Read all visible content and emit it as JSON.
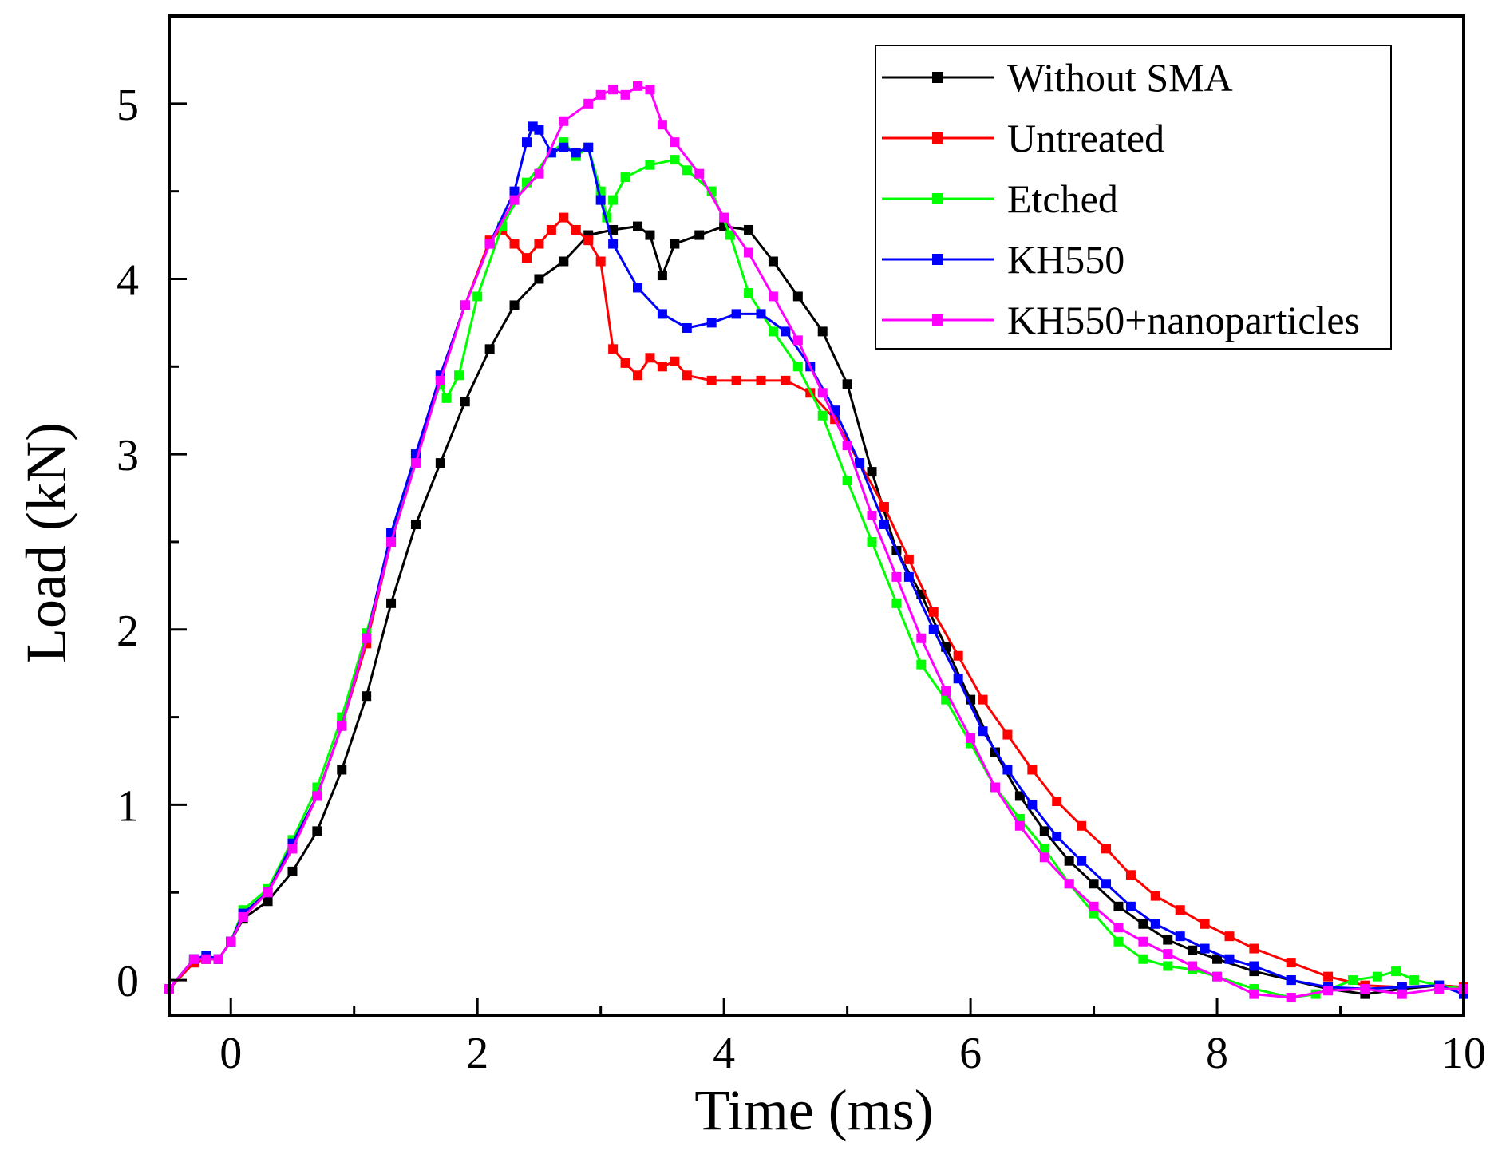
{
  "chart_data": {
    "type": "line",
    "title": "",
    "xlabel": "Time (ms)",
    "ylabel": "Load (kN)",
    "xlim": [
      -0.5,
      10
    ],
    "ylim": [
      -0.2,
      5.5
    ],
    "xticks": [
      0,
      2,
      4,
      6,
      8,
      10
    ],
    "xtick_labels": [
      "0",
      "2",
      "4",
      "6",
      "8",
      "10"
    ],
    "yticks": [
      0,
      1,
      2,
      3,
      4,
      5
    ],
    "ytick_labels": [
      "0",
      "1",
      "2",
      "3",
      "4",
      "5"
    ],
    "grid": false,
    "legend_position": "top-right",
    "series": [
      {
        "name": "Without SMA",
        "color": "#000000",
        "x": [
          -0.5,
          -0.3,
          -0.2,
          -0.1,
          0,
          0.1,
          0.3,
          0.5,
          0.7,
          0.9,
          1.1,
          1.3,
          1.5,
          1.7,
          1.9,
          2.1,
          2.3,
          2.5,
          2.7,
          2.9,
          3.1,
          3.3,
          3.4,
          3.5,
          3.6,
          3.8,
          4.0,
          4.2,
          4.4,
          4.6,
          4.8,
          5.0,
          5.2,
          5.4,
          5.6,
          5.8,
          6.0,
          6.2,
          6.4,
          6.6,
          6.8,
          7.0,
          7.2,
          7.4,
          7.6,
          7.8,
          8.0,
          8.3,
          8.6,
          8.9,
          9.2,
          9.5,
          9.8,
          10
        ],
        "y": [
          -0.05,
          0.1,
          0.12,
          0.12,
          0.22,
          0.35,
          0.45,
          0.62,
          0.85,
          1.2,
          1.62,
          2.15,
          2.6,
          2.95,
          3.3,
          3.6,
          3.85,
          4.0,
          4.1,
          4.25,
          4.28,
          4.3,
          4.25,
          4.02,
          4.2,
          4.25,
          4.3,
          4.28,
          4.1,
          3.9,
          3.7,
          3.4,
          2.9,
          2.45,
          2.2,
          1.9,
          1.6,
          1.3,
          1.05,
          0.85,
          0.68,
          0.55,
          0.42,
          0.32,
          0.23,
          0.17,
          0.12,
          0.05,
          0.0,
          -0.05,
          -0.08,
          -0.05,
          -0.03,
          -0.04
        ]
      },
      {
        "name": "Untreated",
        "color": "#ff0000",
        "x": [
          -0.5,
          -0.3,
          -0.2,
          -0.1,
          0,
          0.1,
          0.3,
          0.5,
          0.7,
          0.9,
          1.1,
          1.3,
          1.5,
          1.7,
          1.9,
          2.1,
          2.2,
          2.3,
          2.4,
          2.5,
          2.6,
          2.7,
          2.8,
          2.9,
          3.0,
          3.1,
          3.2,
          3.3,
          3.4,
          3.5,
          3.6,
          3.7,
          3.9,
          4.1,
          4.3,
          4.5,
          4.7,
          4.9,
          5.1,
          5.3,
          5.5,
          5.7,
          5.9,
          6.1,
          6.3,
          6.5,
          6.7,
          6.9,
          7.1,
          7.3,
          7.5,
          7.7,
          7.9,
          8.1,
          8.3,
          8.6,
          8.9,
          9.2,
          9.5,
          9.8,
          10
        ],
        "y": [
          -0.05,
          0.1,
          0.12,
          0.12,
          0.22,
          0.38,
          0.5,
          0.75,
          1.05,
          1.45,
          1.92,
          2.5,
          3.0,
          3.45,
          3.85,
          4.22,
          4.28,
          4.2,
          4.12,
          4.2,
          4.28,
          4.35,
          4.28,
          4.22,
          4.1,
          3.6,
          3.52,
          3.45,
          3.55,
          3.5,
          3.53,
          3.45,
          3.42,
          3.42,
          3.42,
          3.42,
          3.35,
          3.2,
          2.95,
          2.7,
          2.4,
          2.1,
          1.85,
          1.6,
          1.4,
          1.2,
          1.02,
          0.88,
          0.75,
          0.6,
          0.48,
          0.4,
          0.32,
          0.25,
          0.18,
          0.1,
          0.02,
          -0.03,
          -0.04,
          -0.03,
          -0.04
        ]
      },
      {
        "name": "Etched",
        "color": "#00ff00",
        "x": [
          -0.5,
          -0.3,
          -0.2,
          -0.1,
          0,
          0.1,
          0.3,
          0.5,
          0.7,
          0.9,
          1.1,
          1.3,
          1.5,
          1.7,
          1.75,
          1.85,
          2.0,
          2.2,
          2.4,
          2.6,
          2.7,
          2.8,
          2.9,
          3.0,
          3.05,
          3.1,
          3.2,
          3.4,
          3.6,
          3.7,
          3.9,
          4.05,
          4.2,
          4.4,
          4.6,
          4.8,
          5.0,
          5.2,
          5.4,
          5.6,
          5.8,
          6.0,
          6.2,
          6.4,
          6.6,
          6.8,
          7.0,
          7.2,
          7.4,
          7.6,
          7.8,
          8.0,
          8.3,
          8.6,
          8.8,
          9.1,
          9.3,
          9.45,
          9.6,
          9.8,
          10
        ],
        "y": [
          -0.05,
          0.12,
          0.14,
          0.12,
          0.22,
          0.4,
          0.52,
          0.8,
          1.1,
          1.5,
          1.98,
          2.5,
          3.0,
          3.4,
          3.32,
          3.45,
          3.9,
          4.3,
          4.55,
          4.72,
          4.78,
          4.7,
          4.75,
          4.5,
          4.35,
          4.45,
          4.58,
          4.65,
          4.68,
          4.62,
          4.5,
          4.25,
          3.92,
          3.7,
          3.5,
          3.22,
          2.85,
          2.5,
          2.15,
          1.8,
          1.6,
          1.35,
          1.1,
          0.92,
          0.75,
          0.55,
          0.38,
          0.22,
          0.12,
          0.08,
          0.06,
          0.02,
          -0.05,
          -0.1,
          -0.08,
          0.0,
          0.02,
          0.05,
          0.0,
          -0.03,
          -0.05
        ]
      },
      {
        "name": "KH550",
        "color": "#0000ff",
        "x": [
          -0.5,
          -0.3,
          -0.2,
          -0.1,
          0,
          0.1,
          0.3,
          0.5,
          0.7,
          0.9,
          1.1,
          1.3,
          1.5,
          1.7,
          1.9,
          2.1,
          2.3,
          2.4,
          2.45,
          2.5,
          2.6,
          2.7,
          2.8,
          2.9,
          3.0,
          3.1,
          3.3,
          3.5,
          3.7,
          3.9,
          4.1,
          4.3,
          4.5,
          4.7,
          4.9,
          5.1,
          5.3,
          5.5,
          5.7,
          5.9,
          6.1,
          6.3,
          6.5,
          6.7,
          6.9,
          7.1,
          7.3,
          7.5,
          7.7,
          7.9,
          8.1,
          8.3,
          8.6,
          8.9,
          9.2,
          9.5,
          9.8,
          10
        ],
        "y": [
          -0.05,
          0.12,
          0.14,
          0.12,
          0.22,
          0.38,
          0.5,
          0.78,
          1.05,
          1.45,
          1.95,
          2.55,
          3.0,
          3.45,
          3.85,
          4.2,
          4.5,
          4.78,
          4.87,
          4.85,
          4.72,
          4.75,
          4.72,
          4.75,
          4.45,
          4.2,
          3.95,
          3.8,
          3.72,
          3.75,
          3.8,
          3.8,
          3.7,
          3.5,
          3.25,
          2.95,
          2.6,
          2.3,
          2.0,
          1.72,
          1.42,
          1.2,
          1.0,
          0.82,
          0.68,
          0.55,
          0.42,
          0.32,
          0.25,
          0.18,
          0.12,
          0.08,
          0.0,
          -0.04,
          -0.05,
          -0.04,
          -0.03,
          -0.08
        ]
      },
      {
        "name": "KH550+nanoparticles",
        "color": "#ff00ff",
        "x": [
          -0.5,
          -0.3,
          -0.2,
          -0.1,
          0,
          0.1,
          0.3,
          0.5,
          0.7,
          0.9,
          1.1,
          1.3,
          1.5,
          1.7,
          1.9,
          2.1,
          2.3,
          2.5,
          2.7,
          2.9,
          3.0,
          3.1,
          3.2,
          3.3,
          3.4,
          3.5,
          3.6,
          3.8,
          4.0,
          4.2,
          4.4,
          4.6,
          4.8,
          5.0,
          5.2,
          5.4,
          5.6,
          5.8,
          6.0,
          6.2,
          6.4,
          6.6,
          6.8,
          7.0,
          7.2,
          7.4,
          7.6,
          7.8,
          8.0,
          8.3,
          8.6,
          8.9,
          9.2,
          9.5,
          9.8,
          10
        ],
        "y": [
          -0.05,
          0.12,
          0.12,
          0.12,
          0.22,
          0.36,
          0.5,
          0.75,
          1.05,
          1.45,
          1.95,
          2.5,
          2.95,
          3.42,
          3.85,
          4.2,
          4.45,
          4.6,
          4.9,
          5.0,
          5.05,
          5.08,
          5.05,
          5.1,
          5.08,
          4.88,
          4.78,
          4.6,
          4.35,
          4.15,
          3.9,
          3.65,
          3.35,
          3.05,
          2.65,
          2.3,
          1.95,
          1.65,
          1.38,
          1.1,
          0.88,
          0.7,
          0.55,
          0.42,
          0.3,
          0.22,
          0.15,
          0.08,
          0.02,
          -0.08,
          -0.1,
          -0.06,
          -0.05,
          -0.08,
          -0.05,
          -0.05
        ]
      }
    ]
  }
}
